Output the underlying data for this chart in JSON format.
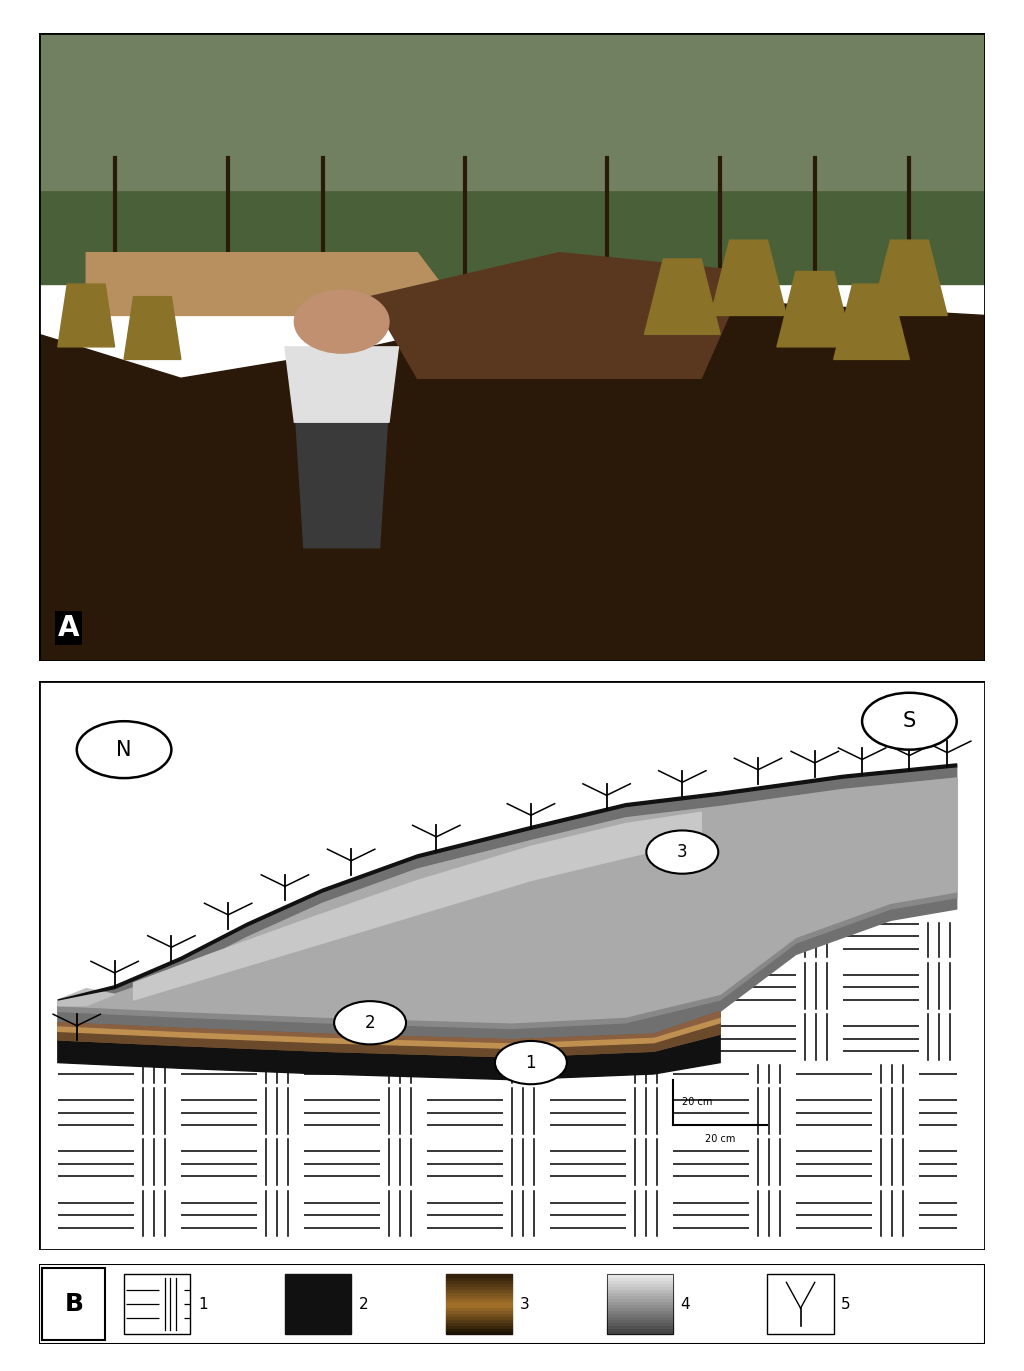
{
  "fig_width": 10.24,
  "fig_height": 13.71,
  "bg_color": "#ffffff",
  "panel_A_label": "A",
  "panel_B_label": "B",
  "N_label": "N",
  "S_label": "S",
  "colors": {
    "rhyolite_bg": "#ffffff",
    "black_layer": "#111111",
    "brown_layer_dark": "#3a2a15",
    "brown_layer_mid": "#7a5535",
    "brown_layer_light": "#c8a060",
    "gray_layer_dark": "#404040",
    "gray_layer_mid": "#888888",
    "gray_layer_light": "#c8c8c8",
    "surface_dark": "#1a1a1a",
    "photo_sky": "#5a7050",
    "photo_soil": "#2a1a0a",
    "photo_grass": "#7a6020"
  },
  "scale_label": "20 cm",
  "legend_labels": [
    "1",
    "2",
    "3",
    "4",
    "5"
  ]
}
